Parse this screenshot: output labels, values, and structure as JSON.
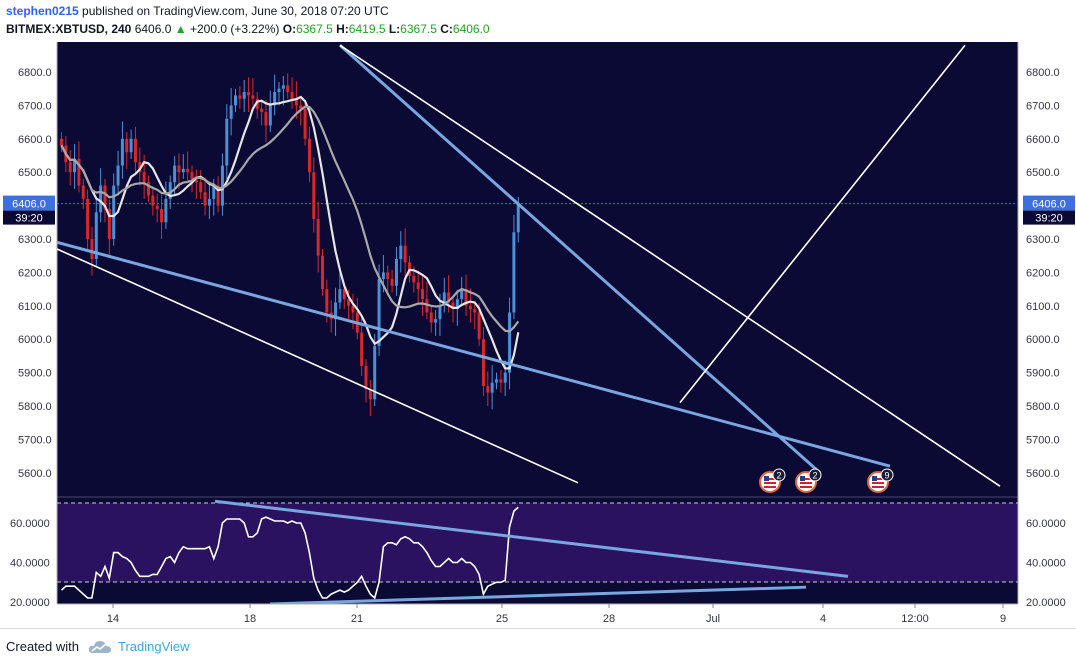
{
  "header": {
    "author": "stephen0215",
    "published_text": "published on TradingView.com, June 30, 2018 07:20 UTC",
    "symbol": "BITMEX:XBTUSD, 240",
    "last": "6406.0",
    "change": "+200.0 (+3.22%)",
    "o_label": "O:",
    "o_value": "6367.5",
    "h_label": "H:",
    "h_value": "6419.5",
    "l_label": "L:",
    "l_value": "6367.5",
    "c_label": "C:",
    "c_value": "6406.0"
  },
  "chart": {
    "price_ticks": [
      "6800.0",
      "6700.0",
      "6600.0",
      "6500.0",
      "6300.0",
      "6200.0",
      "6100.0",
      "6000.0",
      "5900.0",
      "5800.0",
      "5700.0",
      "5600.0"
    ],
    "price_tick_values": [
      6800,
      6700,
      6600,
      6500,
      6300,
      6200,
      6100,
      6000,
      5900,
      5800,
      5700,
      5600
    ],
    "current_price_label": "6406.0",
    "current_price_value": 6406,
    "countdown_label": "39:20",
    "rsi_ticks": [
      "60.0000",
      "40.0000",
      "20.0000"
    ],
    "rsi_tick_values": [
      60,
      40,
      20
    ],
    "rsi_bands": [
      70,
      30
    ],
    "x_labels": [
      "14",
      "18",
      "21",
      "25",
      "28",
      "Jul",
      "4",
      "12:00",
      "9"
    ],
    "event_badges": [
      "2",
      "2",
      "9"
    ],
    "colors": {
      "background": "#0a0a35",
      "candle_up": "#4a90d9",
      "candle_down": "#d9262a",
      "trendline_blue": "#7aa6e0",
      "trendline_white": "#ffffff",
      "ma_fast": "#e6e6e6",
      "ma_slow": "#a8a8a8",
      "price_line": "#4a70ff",
      "rsi_panel": "#2a1260"
    }
  },
  "footer": {
    "created_with": "Created with",
    "brand": "TradingView",
    "brand_icon": "tradingview-cloud-icon"
  }
}
